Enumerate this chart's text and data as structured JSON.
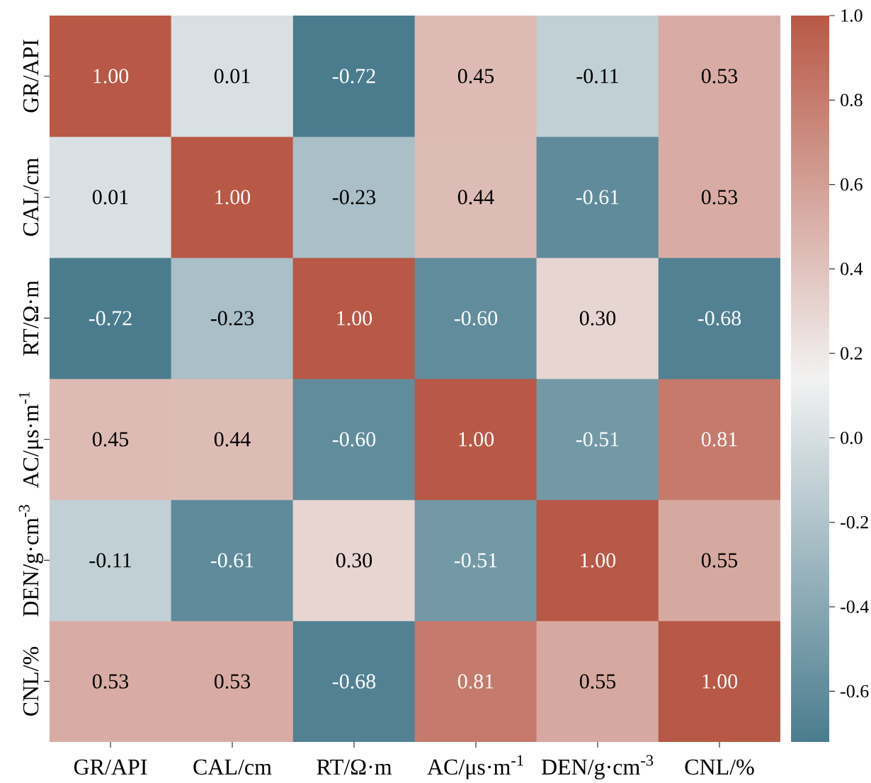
{
  "chart_data": {
    "type": "heatmap",
    "categories": [
      "GR/API",
      "CAL/cm",
      "RT/Ω·m",
      "AC/μs·m$^{-1}$",
      "DEN/g·cm$^{-3}$",
      "CNL/%"
    ],
    "y_categories": [
      "GR/API",
      "CAL/cm",
      "RT/Ω·m",
      "AC/μs·m$^{-1}$",
      "DEN/g·cm$^{-3}$",
      "CNL/%"
    ],
    "cells": [
      [
        1.0,
        0.01,
        -0.72,
        0.45,
        -0.11,
        0.53
      ],
      [
        0.01,
        1.0,
        -0.23,
        0.44,
        -0.61,
        0.53
      ],
      [
        -0.72,
        -0.23,
        1.0,
        -0.6,
        0.3,
        -0.68
      ],
      [
        0.45,
        0.44,
        -0.6,
        1.0,
        -0.51,
        0.81
      ],
      [
        -0.11,
        -0.61,
        0.3,
        -0.51,
        1.0,
        0.55
      ],
      [
        0.53,
        0.53,
        -0.68,
        0.81,
        0.55,
        1.0
      ]
    ],
    "cell_labels": [
      [
        "1.00",
        "0.01",
        "-0.72",
        "0.45",
        "-0.11",
        "0.53"
      ],
      [
        "0.01",
        "1.00",
        "-0.23",
        "0.44",
        "-0.61",
        "0.53"
      ],
      [
        "-0.72",
        "-0.23",
        "1.00",
        "-0.60",
        "0.30",
        "-0.68"
      ],
      [
        "0.45",
        "0.44",
        "-0.60",
        "1.00",
        "-0.51",
        "0.81"
      ],
      [
        "-0.11",
        "-0.61",
        "0.30",
        "-0.51",
        "1.00",
        "0.55"
      ],
      [
        "0.53",
        "0.53",
        "-0.68",
        "0.81",
        "0.55",
        "1.00"
      ]
    ],
    "clim": [
      -0.72,
      1.0
    ],
    "cticks": [
      -0.6,
      -0.4,
      -0.2,
      {
        "value": 0,
        "label": "0.0"
      },
      0.2,
      0.4,
      0.6,
      0.8,
      {
        "value": 1,
        "label": "1.0"
      }
    ]
  }
}
